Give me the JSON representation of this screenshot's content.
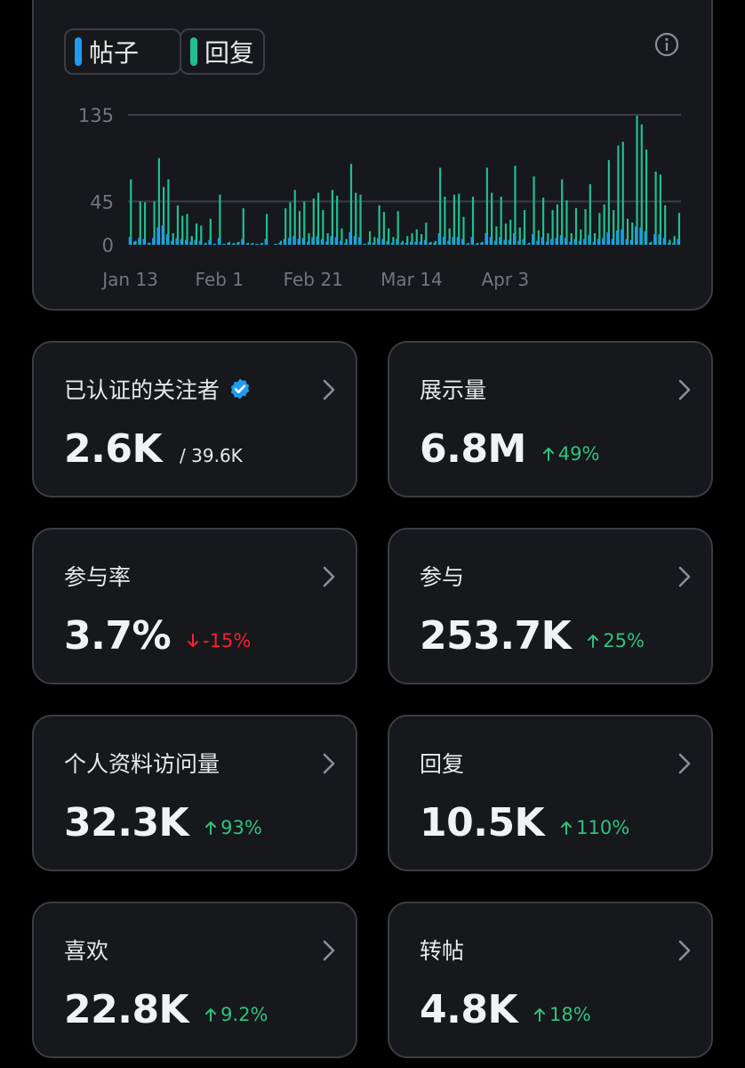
{
  "legend": {
    "posts_label": "帖子",
    "replies_label": "回复",
    "posts_color": "#1d9bf0",
    "replies_color": "#1fbf8f"
  },
  "chart_data": {
    "type": "bar",
    "y_ticks": [
      "135",
      "45",
      "0"
    ],
    "y_tick_values": [
      135,
      45,
      0
    ],
    "ylim": [
      0,
      135
    ],
    "x_tick_labels": [
      "Jan 13",
      "Feb 1",
      "Feb 21",
      "Mar 14",
      "Apr 3"
    ],
    "x_tick_days": [
      0,
      19,
      39,
      60,
      80
    ],
    "grid": "horizontal",
    "series": [
      {
        "name": "回复",
        "color": "#1fbf8f",
        "values": [
          68,
          4,
          45,
          44,
          2,
          45,
          90,
          60,
          68,
          12,
          41,
          30,
          32,
          9,
          22,
          20,
          2,
          27,
          1,
          52,
          1,
          3,
          2,
          3,
          38,
          2,
          2,
          1,
          2,
          32,
          0,
          1,
          4,
          38,
          44,
          57,
          35,
          45,
          12,
          48,
          54,
          36,
          12,
          57,
          51,
          17,
          6,
          84,
          54,
          52,
          1,
          14,
          8,
          41,
          34,
          17,
          8,
          35,
          4,
          9,
          12,
          16,
          11,
          23,
          3,
          4,
          80,
          50,
          17,
          52,
          53,
          29,
          2,
          50,
          2,
          3,
          80,
          54,
          19,
          50,
          22,
          26,
          82,
          18,
          36,
          2,
          71,
          15,
          49,
          12,
          36,
          42,
          68,
          46,
          12,
          38,
          16,
          37,
          63,
          12,
          33,
          42,
          88,
          36,
          103,
          107,
          27,
          23,
          134,
          125,
          99,
          3,
          76,
          73,
          41,
          5,
          9,
          33
        ]
      },
      {
        "name": "帖子",
        "color": "#1d9bf0",
        "values": [
          8,
          3,
          7,
          6,
          2,
          7,
          18,
          20,
          11,
          4,
          7,
          6,
          5,
          3,
          5,
          4,
          1,
          5,
          1,
          7,
          1,
          2,
          1,
          2,
          6,
          1,
          1,
          1,
          1,
          6,
          0,
          1,
          2,
          6,
          7,
          9,
          6,
          7,
          3,
          8,
          9,
          6,
          3,
          9,
          8,
          4,
          2,
          13,
          9,
          8,
          1,
          3,
          2,
          7,
          6,
          4,
          2,
          6,
          2,
          2,
          3,
          3,
          3,
          5,
          2,
          2,
          12,
          8,
          4,
          8,
          8,
          6,
          1,
          8,
          1,
          2,
          12,
          8,
          4,
          8,
          5,
          5,
          12,
          4,
          6,
          1,
          11,
          4,
          8,
          3,
          6,
          7,
          10,
          7,
          3,
          6,
          4,
          6,
          10,
          3,
          6,
          7,
          13,
          6,
          15,
          16,
          6,
          5,
          19,
          18,
          14,
          2,
          11,
          11,
          7,
          2,
          2,
          6
        ]
      }
    ]
  },
  "metrics": [
    {
      "label": "已认证的关注者",
      "value": "2.6K",
      "sub": "/ 39.6K",
      "change": "",
      "direction": "none",
      "verified": true
    },
    {
      "label": "展示量",
      "value": "6.8M",
      "sub": "",
      "change": "49%",
      "direction": "up",
      "verified": false
    },
    {
      "label": "参与率",
      "value": "3.7%",
      "sub": "",
      "change": "-15%",
      "direction": "down",
      "verified": false
    },
    {
      "label": "参与",
      "value": "253.7K",
      "sub": "",
      "change": "25%",
      "direction": "up",
      "verified": false
    },
    {
      "label": "个人资料访问量",
      "value": "32.3K",
      "sub": "",
      "change": "93%",
      "direction": "up",
      "verified": false
    },
    {
      "label": "回复",
      "value": "10.5K",
      "sub": "",
      "change": "110%",
      "direction": "up",
      "verified": false
    },
    {
      "label": "喜欢",
      "value": "22.8K",
      "sub": "",
      "change": "9.2%",
      "direction": "up",
      "verified": false
    },
    {
      "label": "转帖",
      "value": "4.8K",
      "sub": "",
      "change": "18%",
      "direction": "up",
      "verified": false
    }
  ],
  "icons": {
    "info": "info-icon",
    "verified": "verified-badge-icon",
    "chevron": "chevron-right-icon",
    "arrow_up": "arrow-up-icon",
    "arrow_down": "arrow-down-icon"
  }
}
